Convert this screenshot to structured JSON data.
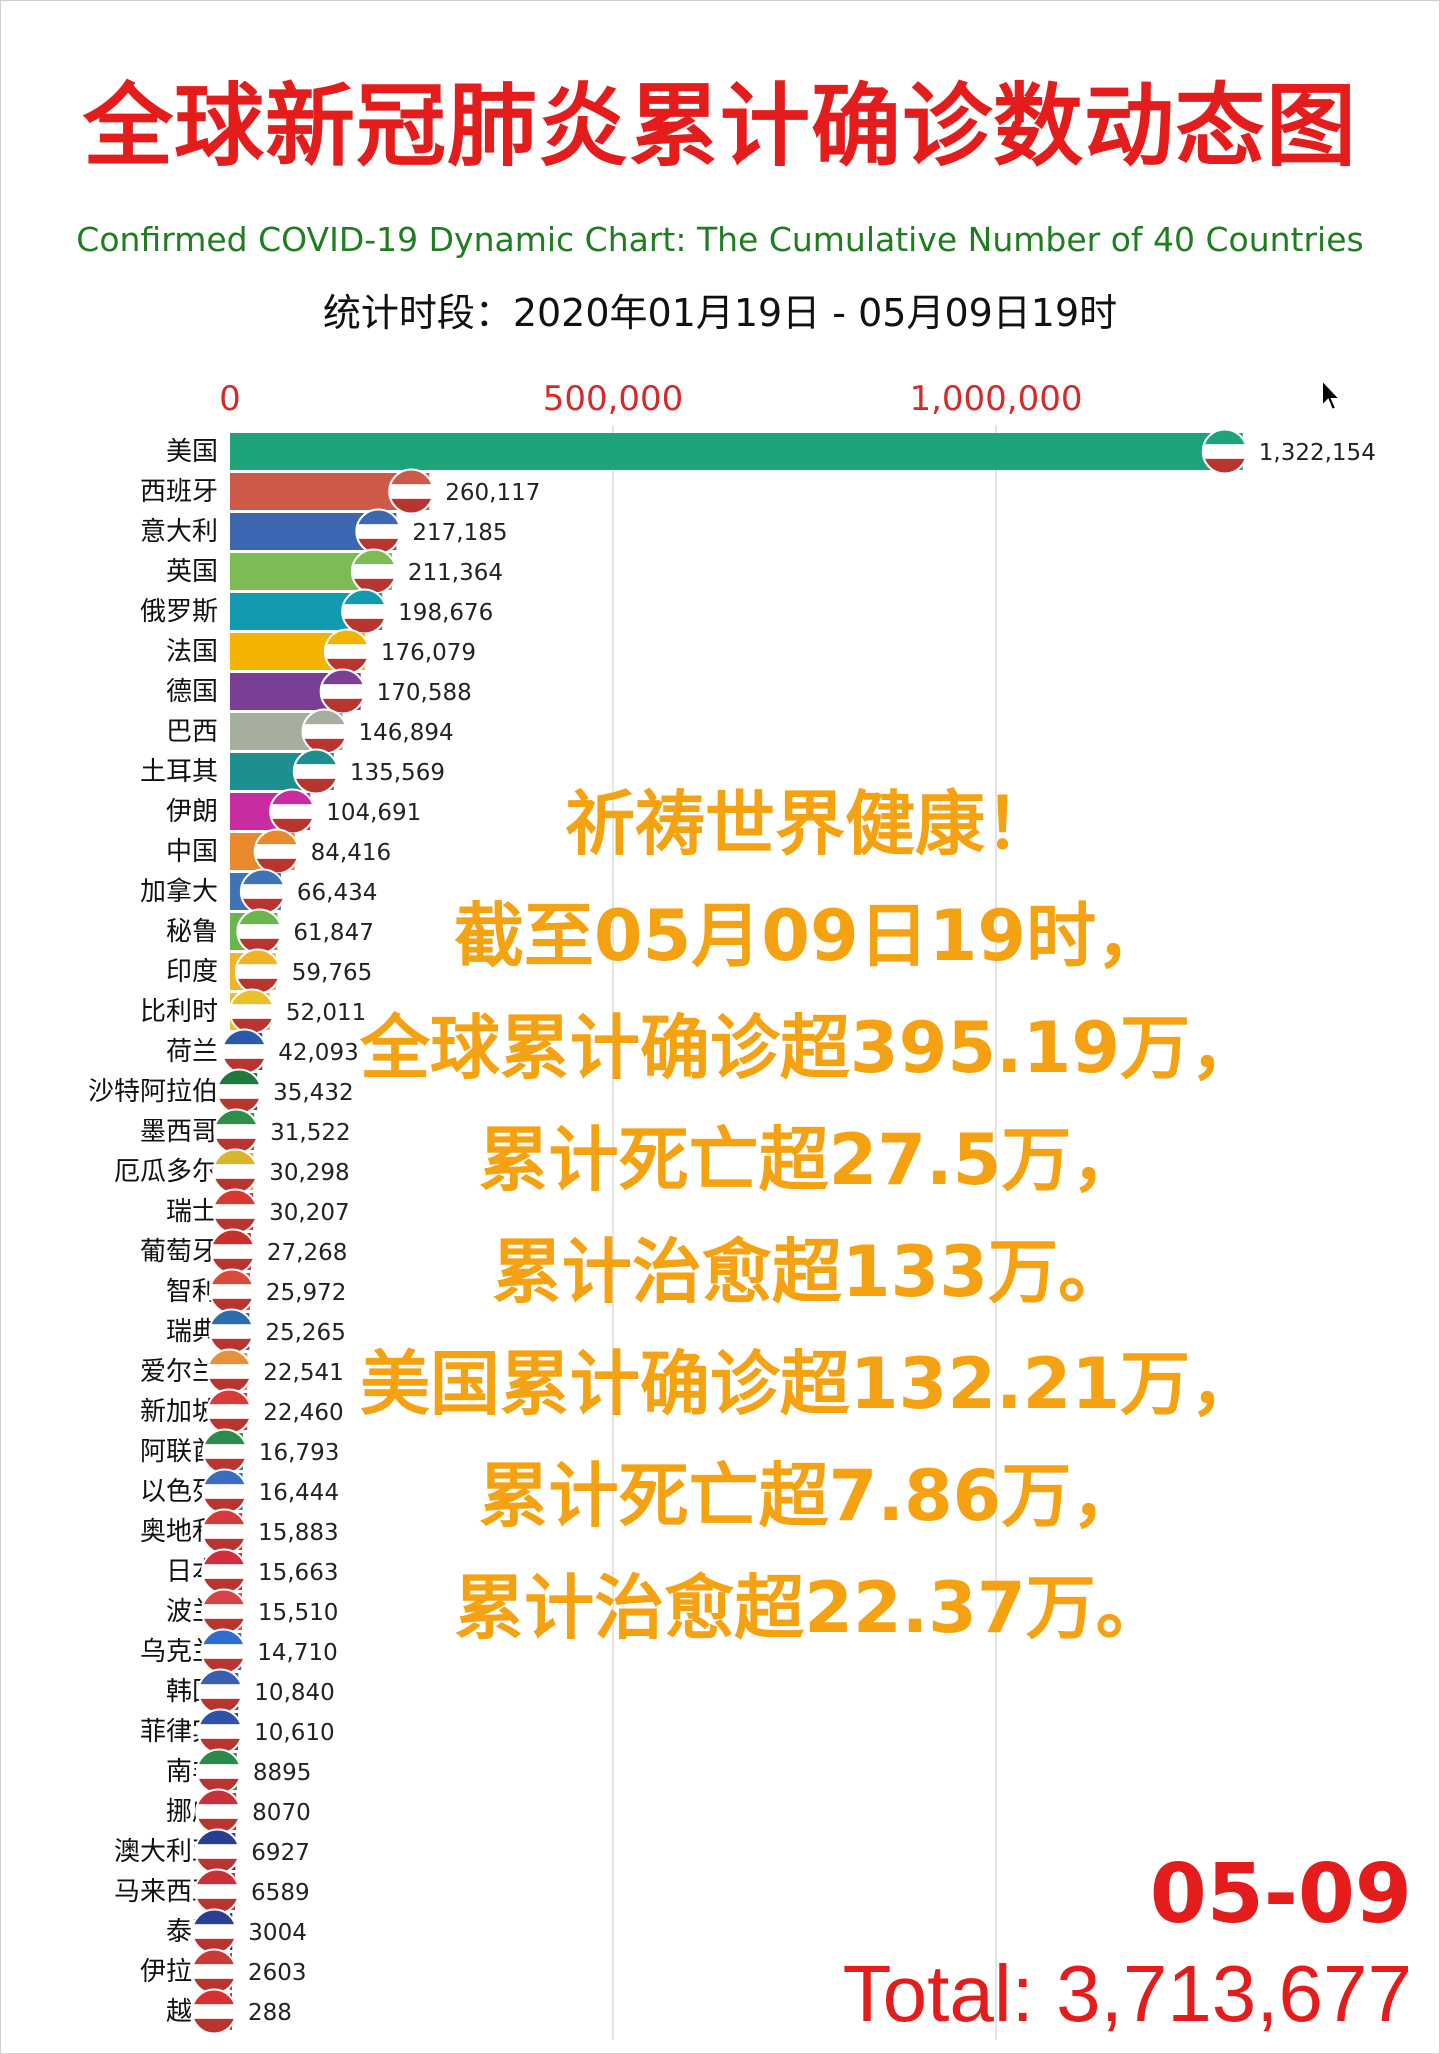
{
  "title": "全球新冠肺炎累计确诊数动态图",
  "subtitle": "Confirmed COVID-19 Dynamic Chart: The Cumulative Number of 40 Countries",
  "period": "统计时段：2020年01月19日 - 05月09日19时",
  "date_label": "05-09",
  "total_label": "Total: 3,713,677",
  "overlay_lines": [
    "祈祷世界健康！",
    "截至05月09日19时，",
    "全球累计确诊超395.19万，",
    "累计死亡超27.5万，",
    "累计治愈超133万。",
    "美国累计确诊超132.21万，",
    "累计死亡超7.86万，",
    "累计治愈超22.37万。"
  ],
  "chart_data": {
    "type": "bar",
    "orientation": "horizontal",
    "title": "全球新冠肺炎累计确诊数动态图",
    "xlim": [
      0,
      1400000
    ],
    "x_ticks": [
      {
        "value": 0,
        "label": "0"
      },
      {
        "value": 500000,
        "label": "500,000"
      },
      {
        "value": 1000000,
        "label": "1,000,000"
      }
    ],
    "tick_color": "#d42a2a",
    "grid": true,
    "bars": [
      {
        "label": "美国",
        "value": 1322154,
        "value_label": "1,322,154",
        "color": "#1ea47a",
        "flag": "us-flag"
      },
      {
        "label": "西班牙",
        "value": 260117,
        "value_label": "260,117",
        "color": "#cd5a48",
        "flag": "spain-flag"
      },
      {
        "label": "意大利",
        "value": 217185,
        "value_label": "217,185",
        "color": "#3d67b0",
        "flag": "italy-flag"
      },
      {
        "label": "英国",
        "value": 211364,
        "value_label": "211,364",
        "color": "#7dbb55",
        "flag": "uk-flag"
      },
      {
        "label": "俄罗斯",
        "value": 198676,
        "value_label": "198,676",
        "color": "#129ab0",
        "flag": "russia-flag"
      },
      {
        "label": "法国",
        "value": 176079,
        "value_label": "176,079",
        "color": "#f2b400",
        "flag": "france-flag"
      },
      {
        "label": "德国",
        "value": 170588,
        "value_label": "170,588",
        "color": "#7b3e95",
        "flag": "germany-flag"
      },
      {
        "label": "巴西",
        "value": 146894,
        "value_label": "146,894",
        "color": "#a6ae9e",
        "flag": "brazil-flag"
      },
      {
        "label": "土耳其",
        "value": 135569,
        "value_label": "135,569",
        "color": "#1d8f8e",
        "flag": "turkey-flag"
      },
      {
        "label": "伊朗",
        "value": 104691,
        "value_label": "104,691",
        "color": "#c92ca0",
        "flag": "iran-flag"
      },
      {
        "label": "中国",
        "value": 84416,
        "value_label": "84,416",
        "color": "#e88a2b",
        "flag": "china-flag"
      },
      {
        "label": "加拿大",
        "value": 66434,
        "value_label": "66,434",
        "color": "#3e73b6",
        "flag": "canada-flag"
      },
      {
        "label": "秘鲁",
        "value": 61847,
        "value_label": "61,847",
        "color": "#6bb54f",
        "flag": "peru-flag"
      },
      {
        "label": "印度",
        "value": 59765,
        "value_label": "59,765",
        "color": "#f0b42a",
        "flag": "india-flag"
      },
      {
        "label": "比利时",
        "value": 52011,
        "value_label": "52,011",
        "color": "#e8c02a",
        "flag": "belgium-flag"
      },
      {
        "label": "荷兰",
        "value": 42093,
        "value_label": "42,093",
        "color": "#2b59a8",
        "flag": "netherlands-flag"
      },
      {
        "label": "沙特阿拉伯",
        "value": 35432,
        "value_label": "35,432",
        "color": "#1e7a3c",
        "flag": "saudi-flag"
      },
      {
        "label": "墨西哥",
        "value": 31522,
        "value_label": "31,522",
        "color": "#2f8f4a",
        "flag": "mexico-flag"
      },
      {
        "label": "厄瓜多尔",
        "value": 30298,
        "value_label": "30,298",
        "color": "#d9b52b",
        "flag": "ecuador-flag"
      },
      {
        "label": "瑞士",
        "value": 30207,
        "value_label": "30,207",
        "color": "#d8382f",
        "flag": "switzerland-flag"
      },
      {
        "label": "葡萄牙",
        "value": 27268,
        "value_label": "27,268",
        "color": "#c9302c",
        "flag": "portugal-flag"
      },
      {
        "label": "智利",
        "value": 25972,
        "value_label": "25,972",
        "color": "#d94a3d",
        "flag": "chile-flag"
      },
      {
        "label": "瑞典",
        "value": 25265,
        "value_label": "25,265",
        "color": "#2b6cb0",
        "flag": "sweden-flag"
      },
      {
        "label": "爱尔兰",
        "value": 22541,
        "value_label": "22,541",
        "color": "#e8913c",
        "flag": "ireland-flag"
      },
      {
        "label": "新加坡",
        "value": 22460,
        "value_label": "22,460",
        "color": "#d93a3a",
        "flag": "singapore-flag"
      },
      {
        "label": "阿联酋",
        "value": 16793,
        "value_label": "16,793",
        "color": "#2e8b4e",
        "flag": "uae-flag"
      },
      {
        "label": "以色列",
        "value": 16444,
        "value_label": "16,444",
        "color": "#3a6cc0",
        "flag": "israel-flag"
      },
      {
        "label": "奥地利",
        "value": 15883,
        "value_label": "15,883",
        "color": "#d43b3b",
        "flag": "austria-flag"
      },
      {
        "label": "日本",
        "value": 15663,
        "value_label": "15,663",
        "color": "#cf2f3f",
        "flag": "japan-flag"
      },
      {
        "label": "波兰",
        "value": 15510,
        "value_label": "15,510",
        "color": "#d8424a",
        "flag": "poland-flag"
      },
      {
        "label": "乌克兰",
        "value": 14710,
        "value_label": "14,710",
        "color": "#2f6ed0",
        "flag": "ukraine-flag"
      },
      {
        "label": "韩国",
        "value": 10840,
        "value_label": "10,840",
        "color": "#3a5fb0",
        "flag": "korea-flag"
      },
      {
        "label": "菲律宾",
        "value": 10610,
        "value_label": "10,610",
        "color": "#2d52a8",
        "flag": "philippines-flag"
      },
      {
        "label": "南非",
        "value": 8895,
        "value_label": "8895",
        "color": "#2a8a4a",
        "flag": "south-africa-flag"
      },
      {
        "label": "挪威",
        "value": 8070,
        "value_label": "8070",
        "color": "#c8303a",
        "flag": "norway-flag"
      },
      {
        "label": "澳大利亚",
        "value": 6927,
        "value_label": "6927",
        "color": "#263f8f",
        "flag": "australia-flag"
      },
      {
        "label": "马来西亚",
        "value": 6589,
        "value_label": "6589",
        "color": "#c8303a",
        "flag": "malaysia-flag"
      },
      {
        "label": "泰国",
        "value": 3004,
        "value_label": "3004",
        "color": "#2a3f8f",
        "flag": "thailand-flag"
      },
      {
        "label": "伊拉克",
        "value": 2603,
        "value_label": "2603",
        "color": "#c93a3a",
        "flag": "iraq-flag"
      },
      {
        "label": "越南",
        "value": 288,
        "value_label": "288",
        "color": "#d8302f",
        "flag": "vietnam-flag"
      }
    ]
  }
}
